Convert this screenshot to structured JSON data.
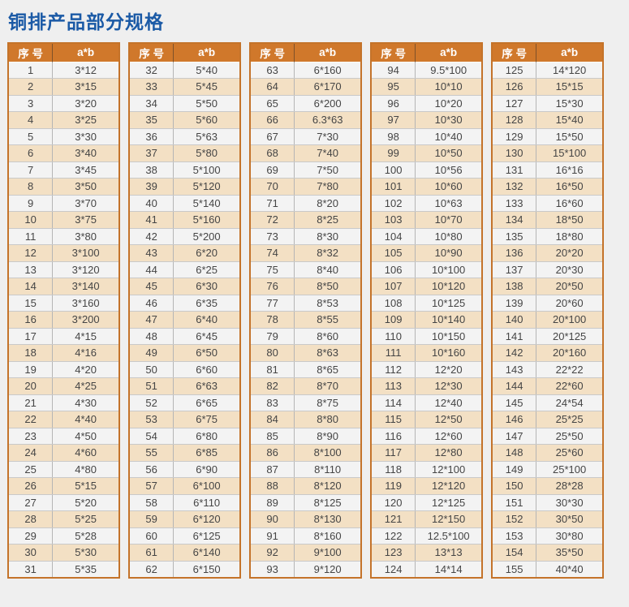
{
  "page": {
    "title": "铜排产品部分规格",
    "title_color": "#1b5aa6",
    "background_color": "#efefef"
  },
  "table": {
    "header": {
      "serial_label": "序 号",
      "size_label": "a*b",
      "header_bg": "#d0782b",
      "header_text_color": "#ffffff"
    },
    "colors": {
      "outer_border": "#c4732a",
      "row_plain": "#f3f3f3",
      "row_alt": "#f3e0c4",
      "cell_text": "#454545"
    },
    "columns": [
      {
        "rows": [
          {
            "no": "1",
            "ab": "3*12"
          },
          {
            "no": "2",
            "ab": "3*15"
          },
          {
            "no": "3",
            "ab": "3*20"
          },
          {
            "no": "4",
            "ab": "3*25"
          },
          {
            "no": "5",
            "ab": "3*30"
          },
          {
            "no": "6",
            "ab": "3*40"
          },
          {
            "no": "7",
            "ab": "3*45"
          },
          {
            "no": "8",
            "ab": "3*50"
          },
          {
            "no": "9",
            "ab": "3*70"
          },
          {
            "no": "10",
            "ab": "3*75"
          },
          {
            "no": "11",
            "ab": "3*80"
          },
          {
            "no": "12",
            "ab": "3*100"
          },
          {
            "no": "13",
            "ab": "3*120"
          },
          {
            "no": "14",
            "ab": "3*140"
          },
          {
            "no": "15",
            "ab": "3*160"
          },
          {
            "no": "16",
            "ab": "3*200"
          },
          {
            "no": "17",
            "ab": "4*15"
          },
          {
            "no": "18",
            "ab": "4*16"
          },
          {
            "no": "19",
            "ab": "4*20"
          },
          {
            "no": "20",
            "ab": "4*25"
          },
          {
            "no": "21",
            "ab": "4*30"
          },
          {
            "no": "22",
            "ab": "4*40"
          },
          {
            "no": "23",
            "ab": "4*50"
          },
          {
            "no": "24",
            "ab": "4*60"
          },
          {
            "no": "25",
            "ab": "4*80"
          },
          {
            "no": "26",
            "ab": "5*15"
          },
          {
            "no": "27",
            "ab": "5*20"
          },
          {
            "no": "28",
            "ab": "5*25"
          },
          {
            "no": "29",
            "ab": "5*28"
          },
          {
            "no": "30",
            "ab": "5*30"
          },
          {
            "no": "31",
            "ab": "5*35"
          }
        ]
      },
      {
        "rows": [
          {
            "no": "32",
            "ab": "5*40"
          },
          {
            "no": "33",
            "ab": "5*45"
          },
          {
            "no": "34",
            "ab": "5*50"
          },
          {
            "no": "35",
            "ab": "5*60"
          },
          {
            "no": "36",
            "ab": "5*63"
          },
          {
            "no": "37",
            "ab": "5*80"
          },
          {
            "no": "38",
            "ab": "5*100"
          },
          {
            "no": "39",
            "ab": "5*120"
          },
          {
            "no": "40",
            "ab": "5*140"
          },
          {
            "no": "41",
            "ab": "5*160"
          },
          {
            "no": "42",
            "ab": "5*200"
          },
          {
            "no": "43",
            "ab": "6*20"
          },
          {
            "no": "44",
            "ab": "6*25"
          },
          {
            "no": "45",
            "ab": "6*30"
          },
          {
            "no": "46",
            "ab": "6*35"
          },
          {
            "no": "47",
            "ab": "6*40"
          },
          {
            "no": "48",
            "ab": "6*45"
          },
          {
            "no": "49",
            "ab": "6*50"
          },
          {
            "no": "50",
            "ab": "6*60"
          },
          {
            "no": "51",
            "ab": "6*63"
          },
          {
            "no": "52",
            "ab": "6*65"
          },
          {
            "no": "53",
            "ab": "6*75"
          },
          {
            "no": "54",
            "ab": "6*80"
          },
          {
            "no": "55",
            "ab": "6*85"
          },
          {
            "no": "56",
            "ab": "6*90"
          },
          {
            "no": "57",
            "ab": "6*100"
          },
          {
            "no": "58",
            "ab": "6*110"
          },
          {
            "no": "59",
            "ab": "6*120"
          },
          {
            "no": "60",
            "ab": "6*125"
          },
          {
            "no": "61",
            "ab": "6*140"
          },
          {
            "no": "62",
            "ab": "6*150"
          }
        ]
      },
      {
        "rows": [
          {
            "no": "63",
            "ab": "6*160"
          },
          {
            "no": "64",
            "ab": "6*170"
          },
          {
            "no": "65",
            "ab": "6*200"
          },
          {
            "no": "66",
            "ab": "6.3*63"
          },
          {
            "no": "67",
            "ab": "7*30"
          },
          {
            "no": "68",
            "ab": "7*40"
          },
          {
            "no": "69",
            "ab": "7*50"
          },
          {
            "no": "70",
            "ab": "7*80"
          },
          {
            "no": "71",
            "ab": "8*20"
          },
          {
            "no": "72",
            "ab": "8*25"
          },
          {
            "no": "73",
            "ab": "8*30"
          },
          {
            "no": "74",
            "ab": "8*32"
          },
          {
            "no": "75",
            "ab": "8*40"
          },
          {
            "no": "76",
            "ab": "8*50"
          },
          {
            "no": "77",
            "ab": "8*53"
          },
          {
            "no": "78",
            "ab": "8*55"
          },
          {
            "no": "79",
            "ab": "8*60"
          },
          {
            "no": "80",
            "ab": "8*63"
          },
          {
            "no": "81",
            "ab": "8*65"
          },
          {
            "no": "82",
            "ab": "8*70"
          },
          {
            "no": "83",
            "ab": "8*75"
          },
          {
            "no": "84",
            "ab": "8*80"
          },
          {
            "no": "85",
            "ab": "8*90"
          },
          {
            "no": "86",
            "ab": "8*100"
          },
          {
            "no": "87",
            "ab": "8*110"
          },
          {
            "no": "88",
            "ab": "8*120"
          },
          {
            "no": "89",
            "ab": "8*125"
          },
          {
            "no": "90",
            "ab": "8*130"
          },
          {
            "no": "91",
            "ab": "8*160"
          },
          {
            "no": "92",
            "ab": "9*100"
          },
          {
            "no": "93",
            "ab": "9*120"
          }
        ]
      },
      {
        "rows": [
          {
            "no": "94",
            "ab": "9.5*100"
          },
          {
            "no": "95",
            "ab": "10*10"
          },
          {
            "no": "96",
            "ab": "10*20"
          },
          {
            "no": "97",
            "ab": "10*30"
          },
          {
            "no": "98",
            "ab": "10*40"
          },
          {
            "no": "99",
            "ab": "10*50"
          },
          {
            "no": "100",
            "ab": "10*56"
          },
          {
            "no": "101",
            "ab": "10*60"
          },
          {
            "no": "102",
            "ab": "10*63"
          },
          {
            "no": "103",
            "ab": "10*70"
          },
          {
            "no": "104",
            "ab": "10*80"
          },
          {
            "no": "105",
            "ab": "10*90"
          },
          {
            "no": "106",
            "ab": "10*100"
          },
          {
            "no": "107",
            "ab": "10*120"
          },
          {
            "no": "108",
            "ab": "10*125"
          },
          {
            "no": "109",
            "ab": "10*140"
          },
          {
            "no": "110",
            "ab": "10*150"
          },
          {
            "no": "111",
            "ab": "10*160"
          },
          {
            "no": "112",
            "ab": "12*20"
          },
          {
            "no": "113",
            "ab": "12*30"
          },
          {
            "no": "114",
            "ab": "12*40"
          },
          {
            "no": "115",
            "ab": "12*50"
          },
          {
            "no": "116",
            "ab": "12*60"
          },
          {
            "no": "117",
            "ab": "12*80"
          },
          {
            "no": "118",
            "ab": "12*100"
          },
          {
            "no": "119",
            "ab": "12*120"
          },
          {
            "no": "120",
            "ab": "12*125"
          },
          {
            "no": "121",
            "ab": "12*150"
          },
          {
            "no": "122",
            "ab": "12.5*100"
          },
          {
            "no": "123",
            "ab": "13*13"
          },
          {
            "no": "124",
            "ab": "14*14"
          }
        ]
      },
      {
        "rows": [
          {
            "no": "125",
            "ab": "14*120"
          },
          {
            "no": "126",
            "ab": "15*15"
          },
          {
            "no": "127",
            "ab": "15*30"
          },
          {
            "no": "128",
            "ab": "15*40"
          },
          {
            "no": "129",
            "ab": "15*50"
          },
          {
            "no": "130",
            "ab": "15*100"
          },
          {
            "no": "131",
            "ab": "16*16"
          },
          {
            "no": "132",
            "ab": "16*50"
          },
          {
            "no": "133",
            "ab": "16*60"
          },
          {
            "no": "134",
            "ab": "18*50"
          },
          {
            "no": "135",
            "ab": "18*80"
          },
          {
            "no": "136",
            "ab": "20*20"
          },
          {
            "no": "137",
            "ab": "20*30"
          },
          {
            "no": "138",
            "ab": "20*50"
          },
          {
            "no": "139",
            "ab": "20*60"
          },
          {
            "no": "140",
            "ab": "20*100"
          },
          {
            "no": "141",
            "ab": "20*125"
          },
          {
            "no": "142",
            "ab": "20*160"
          },
          {
            "no": "143",
            "ab": "22*22"
          },
          {
            "no": "144",
            "ab": "22*60"
          },
          {
            "no": "145",
            "ab": "24*54"
          },
          {
            "no": "146",
            "ab": "25*25"
          },
          {
            "no": "147",
            "ab": "25*50"
          },
          {
            "no": "148",
            "ab": "25*60"
          },
          {
            "no": "149",
            "ab": "25*100"
          },
          {
            "no": "150",
            "ab": "28*28"
          },
          {
            "no": "151",
            "ab": "30*30"
          },
          {
            "no": "152",
            "ab": "30*50"
          },
          {
            "no": "153",
            "ab": "30*80"
          },
          {
            "no": "154",
            "ab": "35*50"
          },
          {
            "no": "155",
            "ab": "40*40"
          }
        ]
      }
    ]
  }
}
